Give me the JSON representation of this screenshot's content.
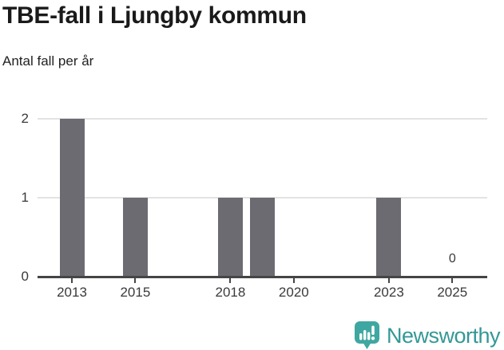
{
  "header": {
    "title": "TBE-fall i Ljungby kommun",
    "subtitle": "Antal fall per år"
  },
  "chart_data": {
    "type": "bar",
    "title": "TBE-fall i Ljungby kommun",
    "subtitle": "Antal fall per år",
    "xlabel": "",
    "ylabel": "Antal fall per år",
    "categories": [
      "2013",
      "2014",
      "2015",
      "2016",
      "2017",
      "2018",
      "2019",
      "2020",
      "2021",
      "2022",
      "2023",
      "2024",
      "2025"
    ],
    "values": [
      2,
      0,
      1,
      0,
      0,
      1,
      1,
      0,
      0,
      0,
      1,
      0,
      0
    ],
    "ylim": [
      0,
      2
    ],
    "y_ticks": [
      0,
      1,
      2
    ],
    "x_tick_labels": [
      "2013",
      "2015",
      "2018",
      "2020",
      "2023",
      "2025"
    ],
    "grid": "horizontal",
    "legend": "none",
    "bar_color": "#6c6b71",
    "last_point_label": {
      "category": "2025",
      "text": "0"
    }
  },
  "footer": {
    "brand": "Newsworthy"
  },
  "colors": {
    "background": "#ffffff",
    "title": "#1a1a1a",
    "subtitle": "#222222",
    "bar": "#6c6b71",
    "axis": "#454545",
    "tick_label": "#3a3a3a",
    "gridline": "#e3e3e3",
    "brand_icon": "#3fa7a1",
    "brand_glyph": "#ffffff",
    "brand_text": "#339896"
  }
}
